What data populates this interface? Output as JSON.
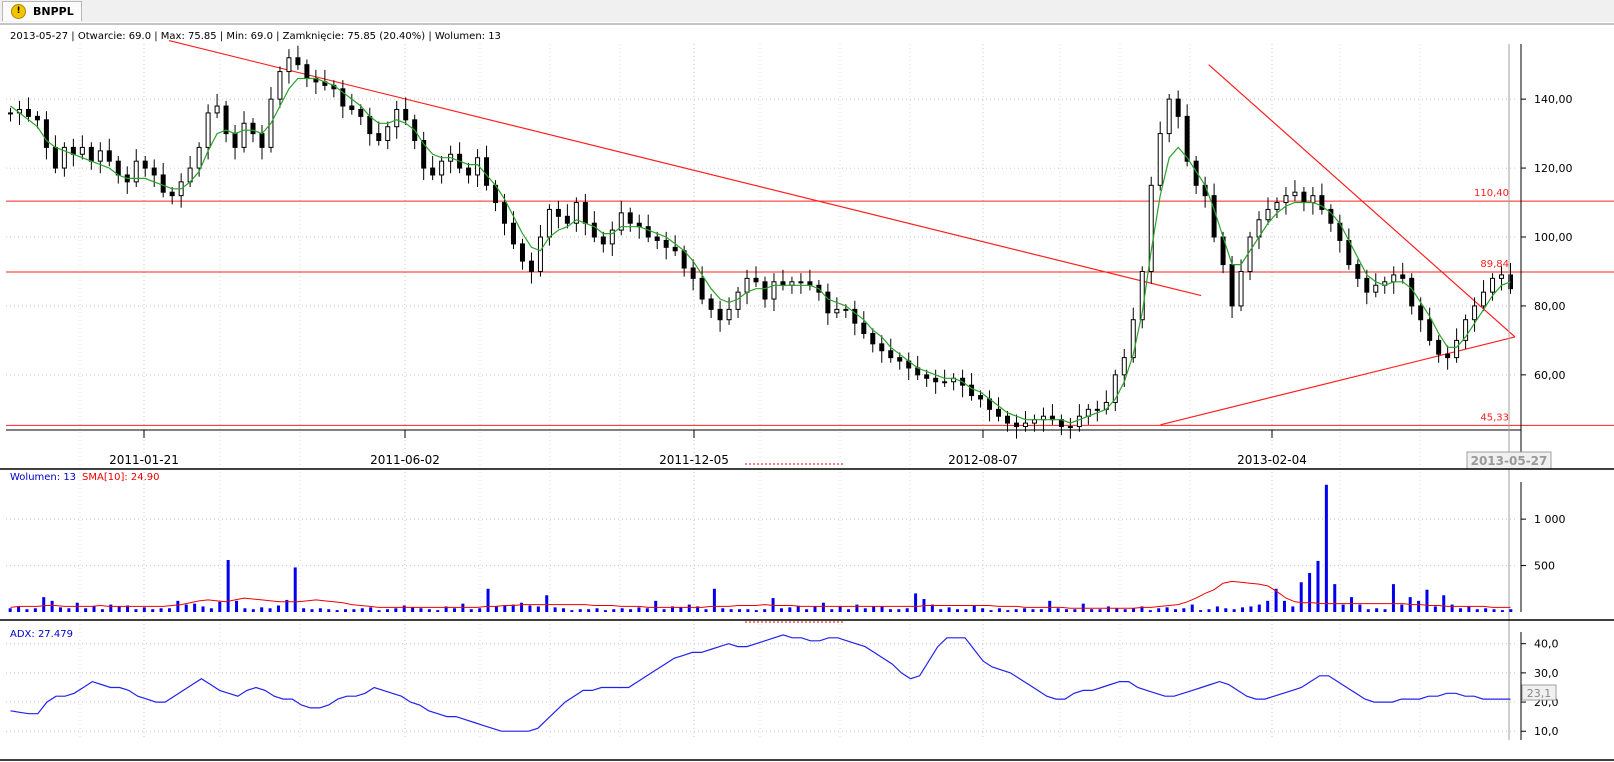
{
  "tab": {
    "label": "BNPPL",
    "icon": "warning-icon"
  },
  "info": {
    "main": "2013-05-27 | Otwarcie: 69.0 | Max: 75.85 | Min: 69.0 | Zamknięcie: 75.85 (20.40%)  | Wolumen: 13",
    "volume_label": "Wolumen: 13",
    "sma_label": "SMA[10]: 24.90",
    "adx_label": "ADX: 27.479"
  },
  "colors": {
    "price_line": "#2ca02c",
    "trendline": "#ff2020",
    "volume_bar": "#0000ee",
    "volume_sma": "#ee0000",
    "adx_line": "#2222ee",
    "grid": "#c8c8c8"
  },
  "chart_data": [
    {
      "type": "candlestick",
      "x_ticks": [
        "2011-01-21",
        "2011-06-02",
        "2011-12-05",
        "2012-08-07",
        "2013-02-04"
      ],
      "cursor_date": "2013-05-27",
      "y_ticks": [
        "60,00",
        "80,00",
        "100,00",
        "120,00",
        "140,00"
      ],
      "ylim": [
        44,
        156
      ],
      "horizontal_levels": [
        {
          "value": 110.4,
          "label": "110,40"
        },
        {
          "value": 89.84,
          "label": "89,84"
        },
        {
          "value": 45.33,
          "label": "45,33"
        }
      ],
      "trendlines": [
        {
          "x0": 0.108,
          "y0": 157,
          "x1": 0.792,
          "y1": 83
        },
        {
          "x0": 0.797,
          "y0": 150,
          "x1": 1.0,
          "y1": 71
        },
        {
          "x0": 0.765,
          "y0": 45.5,
          "x1": 1.0,
          "y1": 71
        }
      ],
      "series": [
        {
          "name": "close",
          "values": [
            136,
            137,
            135,
            134,
            126,
            120,
            126,
            124,
            126,
            122,
            125,
            122,
            118,
            116,
            122,
            120,
            118,
            113,
            112,
            116,
            120,
            126,
            136,
            138,
            130,
            126,
            133,
            130,
            126,
            140,
            148,
            152,
            150,
            146,
            145,
            144,
            143,
            138,
            137,
            135,
            130,
            128,
            132,
            137,
            134,
            128,
            120,
            118,
            122,
            124,
            120,
            118,
            123,
            115,
            110,
            104,
            98,
            93,
            90,
            100,
            108,
            106,
            104,
            110,
            104,
            100,
            98,
            102,
            107,
            104,
            103,
            100,
            99,
            97,
            96,
            91,
            88,
            82,
            79,
            76,
            79,
            84,
            88,
            87,
            82,
            87,
            86,
            87,
            87,
            86,
            84,
            78,
            79,
            79,
            75,
            72,
            69,
            67,
            65,
            64,
            62,
            60,
            59,
            58,
            58,
            59,
            57,
            54,
            53,
            50,
            48,
            46,
            45,
            46,
            47,
            48,
            47,
            45,
            45,
            48,
            50,
            50,
            52,
            60,
            65,
            76,
            90,
            115,
            130,
            140,
            135,
            122,
            115,
            112,
            100,
            92,
            80,
            90,
            100,
            105,
            108,
            110,
            112,
            113,
            110,
            112,
            108,
            104,
            99,
            92,
            88,
            84,
            86,
            87,
            89,
            88,
            80,
            76,
            70,
            66,
            65,
            70,
            76,
            80,
            84,
            88,
            89,
            85
          ]
        },
        {
          "name": "ma",
          "values": [
            138,
            136,
            134,
            132,
            128,
            126,
            125,
            124,
            123,
            122,
            121,
            120,
            118,
            117,
            117,
            117,
            116,
            115,
            114,
            114,
            116,
            119,
            125,
            130,
            131,
            130,
            131,
            131,
            130,
            133,
            138,
            143,
            146,
            146,
            146,
            145,
            144,
            142,
            140,
            138,
            135,
            133,
            133,
            134,
            133,
            131,
            127,
            124,
            123,
            123,
            122,
            121,
            121,
            118,
            115,
            111,
            106,
            101,
            97,
            96,
            100,
            102,
            103,
            105,
            104,
            103,
            101,
            101,
            103,
            103,
            103,
            102,
            101,
            100,
            98,
            96,
            93,
            89,
            85,
            82,
            81,
            82,
            84,
            85,
            85,
            86,
            86,
            86,
            86,
            86,
            85,
            82,
            81,
            80,
            78,
            76,
            73,
            71,
            68,
            66,
            64,
            62,
            61,
            60,
            59,
            59,
            58,
            56,
            55,
            53,
            51,
            49,
            48,
            47,
            47,
            47,
            47,
            47,
            46,
            47,
            48,
            49,
            50,
            53,
            58,
            66,
            78,
            96,
            112,
            123,
            126,
            123,
            119,
            115,
            108,
            100,
            92,
            92,
            96,
            100,
            104,
            107,
            109,
            110,
            110,
            110,
            109,
            107,
            104,
            99,
            94,
            89,
            87,
            86,
            87,
            87,
            85,
            81,
            77,
            72,
            68,
            68,
            71,
            75,
            79,
            83,
            86,
            87
          ]
        }
      ]
    },
    {
      "type": "bar",
      "title": "Wolumen",
      "y_ticks": [
        "500",
        "1 000"
      ],
      "ylim": [
        0,
        1400
      ],
      "series": [
        {
          "name": "Wolumen",
          "values": [
            40,
            60,
            30,
            40,
            160,
            120,
            50,
            40,
            100,
            40,
            60,
            30,
            80,
            60,
            70,
            30,
            50,
            30,
            40,
            40,
            120,
            80,
            90,
            60,
            40,
            110,
            560,
            120,
            40,
            30,
            50,
            40,
            70,
            130,
            480,
            40,
            30,
            40,
            30,
            20,
            30,
            30,
            40,
            50,
            20,
            30,
            40,
            70,
            50,
            40,
            30,
            20,
            60,
            40,
            90,
            30,
            40,
            250,
            60,
            70,
            80,
            100,
            70,
            60,
            180,
            50,
            40,
            20,
            30,
            30,
            40,
            20,
            30,
            40,
            30,
            50,
            40,
            120,
            30,
            60,
            50,
            80,
            60,
            30,
            250,
            40,
            30,
            30,
            30,
            20,
            30,
            150,
            40,
            50,
            60,
            30,
            60,
            100,
            30,
            60,
            30,
            80,
            40,
            60,
            60,
            30,
            30,
            40,
            200,
            140,
            80,
            30,
            50,
            30,
            30,
            70,
            40,
            20,
            40,
            20,
            30,
            40,
            30,
            30,
            120,
            40,
            30,
            30,
            90,
            30,
            30,
            60,
            40,
            30,
            40,
            60,
            20,
            40,
            50,
            30,
            40,
            80,
            20,
            30,
            60,
            40,
            30,
            50,
            60,
            80,
            120,
            250,
            120,
            60,
            320,
            420,
            550,
            1370,
            300,
            80,
            160,
            80,
            30,
            40,
            30,
            300,
            80,
            160,
            120,
            240,
            60,
            180,
            80,
            40,
            60,
            30,
            40,
            30,
            20,
            30
          ]
        },
        {
          "name": "SMA[10]",
          "values": [
            50,
            60,
            60,
            60,
            70,
            70,
            60,
            60,
            60,
            60,
            70,
            60,
            60,
            60,
            60,
            60,
            60,
            60,
            70,
            80,
            100,
            120,
            130,
            120,
            110,
            130,
            150,
            140,
            130,
            120,
            110,
            110,
            110,
            120,
            130,
            120,
            110,
            100,
            80,
            70,
            60,
            50,
            50,
            50,
            50,
            50,
            50,
            50,
            50,
            50,
            50,
            50,
            50,
            60,
            60,
            70,
            70,
            80,
            80,
            80,
            80,
            80,
            80,
            80,
            80,
            70,
            70,
            70,
            60,
            60,
            60,
            50,
            50,
            50,
            50,
            50,
            50,
            50,
            60,
            60,
            60,
            70,
            70,
            70,
            80,
            70,
            70,
            70,
            60,
            60,
            60,
            60,
            60,
            60,
            60,
            60,
            60,
            60,
            60,
            60,
            60,
            60,
            70,
            70,
            70,
            70,
            70,
            70,
            70,
            70,
            60,
            60,
            60,
            50,
            50,
            50,
            50,
            50,
            40,
            40,
            40,
            40,
            40,
            40,
            40,
            40,
            50,
            50,
            60,
            70,
            80,
            110,
            150,
            200,
            240,
            310,
            330,
            320,
            310,
            300,
            280,
            220,
            150,
            110,
            100,
            100,
            90,
            90,
            90,
            90,
            90,
            90,
            90,
            90,
            90,
            90,
            80,
            80,
            70,
            70,
            60,
            60,
            60,
            60,
            60,
            50,
            50,
            50
          ]
        }
      ]
    },
    {
      "type": "line",
      "title": "ADX",
      "y_ticks": [
        "10,0",
        "20,0",
        "30,0",
        "40,0"
      ],
      "ylim": [
        7,
        44
      ],
      "current_value_label": "23,1",
      "series": [
        {
          "name": "ADX",
          "values": [
            17,
            16.5,
            16,
            16,
            20,
            22,
            22,
            23,
            25,
            27,
            26,
            25,
            25,
            24,
            22,
            21,
            20,
            20,
            22,
            24,
            26,
            28,
            26,
            24,
            23,
            22,
            24,
            25,
            24,
            22,
            21,
            21,
            19,
            18,
            18,
            19,
            21,
            22,
            22,
            23,
            25,
            24,
            23,
            22,
            20,
            19,
            17,
            16,
            15,
            15,
            14,
            13,
            12,
            11,
            10,
            10,
            10,
            10,
            11,
            14,
            17,
            20,
            22,
            24,
            24,
            25,
            25,
            25,
            25,
            27,
            29,
            31,
            33,
            35,
            36,
            37,
            37,
            38,
            39,
            40,
            39,
            39,
            40,
            41,
            42,
            43,
            42,
            42,
            41,
            41,
            42,
            42,
            41,
            40,
            39,
            37,
            35,
            33,
            30,
            28,
            29,
            34,
            39,
            42,
            42,
            42,
            38,
            34,
            32,
            31,
            30,
            28,
            26,
            24,
            22,
            21,
            21,
            23,
            24,
            24,
            25,
            26,
            27,
            27,
            25,
            24,
            23,
            22,
            22,
            23,
            24,
            25,
            26,
            27,
            26,
            24,
            22,
            21,
            21,
            22,
            23,
            24,
            25,
            27,
            29,
            29,
            27,
            25,
            23,
            21,
            20,
            20,
            20,
            21,
            21,
            21,
            22,
            22,
            23,
            23,
            22,
            22,
            21,
            21,
            21,
            21
          ]
        }
      ]
    }
  ]
}
